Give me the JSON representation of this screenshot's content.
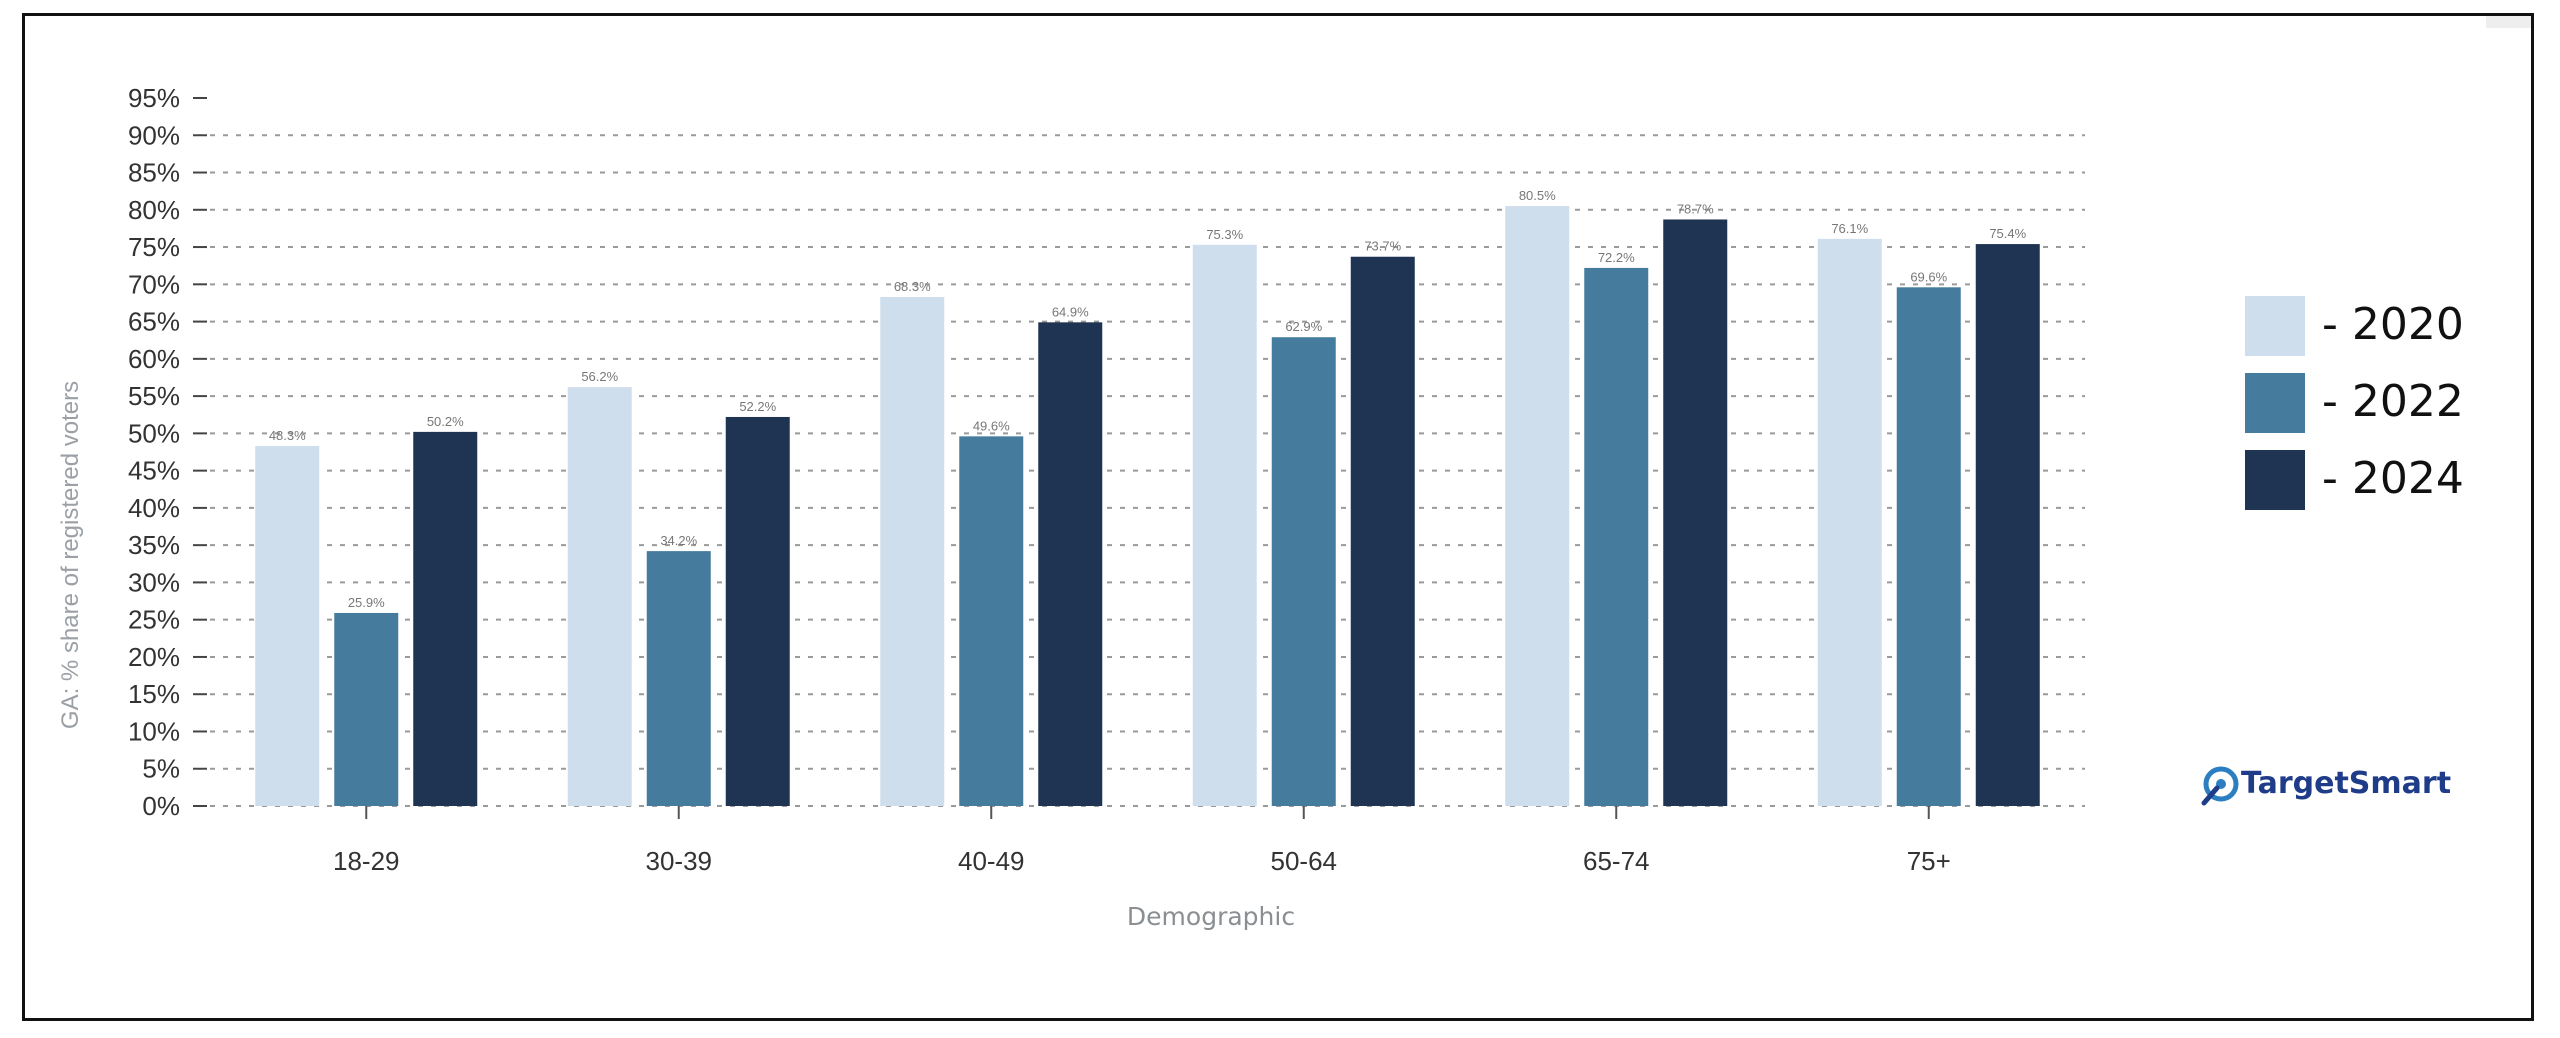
{
  "chart_data": {
    "type": "bar",
    "title": "",
    "xlabel": "Demographic",
    "ylabel": "GA: % share of registered voters",
    "categories": [
      "18-29",
      "30-39",
      "40-49",
      "50-64",
      "65-74",
      "75+"
    ],
    "series": [
      {
        "name": "- 2020",
        "color": "#cfdeec",
        "values": [
          48.3,
          56.2,
          68.3,
          75.3,
          80.5,
          76.1
        ],
        "labels": [
          "48.3%",
          "56.2%",
          "68.3%",
          "75.3%",
          "80.5%",
          "76.1%"
        ]
      },
      {
        "name": "- 2022",
        "color": "#457b9d",
        "values": [
          25.9,
          34.2,
          49.6,
          62.9,
          72.2,
          69.6
        ],
        "labels": [
          "25.9%",
          "34.2%",
          "49.6%",
          "62.9%",
          "72.2%",
          "69.6%"
        ]
      },
      {
        "name": "- 2024",
        "color": "#1f3352",
        "values": [
          50.2,
          52.2,
          64.9,
          73.7,
          78.7,
          75.4
        ],
        "labels": [
          "50.2%",
          "52.2%",
          "64.9%",
          "73.7%",
          "78.7%",
          "75.4%"
        ]
      }
    ],
    "ylim": [
      0,
      95
    ],
    "yticks": [
      "0%",
      "5%",
      "10%",
      "15%",
      "20%",
      "25%",
      "30%",
      "35%",
      "40%",
      "45%",
      "50%",
      "55%",
      "60%",
      "65%",
      "70%",
      "75%",
      "80%",
      "85%",
      "90%",
      "95%"
    ],
    "grid": true,
    "legend": "right"
  },
  "logo": {
    "text": "TargetSmart",
    "color": "#1f3c88"
  }
}
